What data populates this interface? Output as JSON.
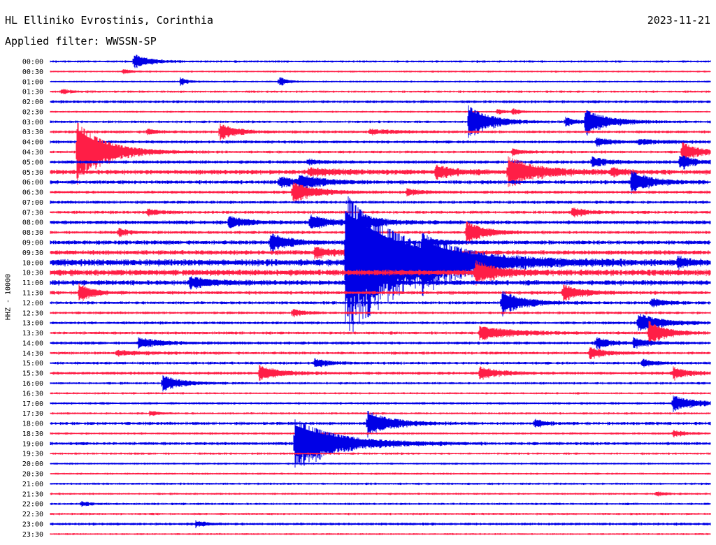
{
  "header": {
    "station": "HL Elliniko Evrostinis, Corinthia",
    "date": "2023-11-21",
    "filter": "Applied filter: WWSSN-SP"
  },
  "channel_label": "HHZ - 10000",
  "chart_data": {
    "type": "line",
    "kind": "helicorder",
    "title": "HL Elliniko Evrostinis, Corinthia",
    "date": "2023-11-21",
    "filter": "WWSSN-SP",
    "ylabel": "HHZ - 10000",
    "x_range_minutes": [
      0,
      30
    ],
    "trace_colors": [
      "#0000e6",
      "#ff1e46"
    ],
    "rows": [
      "00:00",
      "00:30",
      "01:00",
      "01:30",
      "02:00",
      "02:30",
      "03:00",
      "03:30",
      "04:00",
      "04:30",
      "05:00",
      "05:30",
      "06:00",
      "06:30",
      "07:00",
      "07:30",
      "08:00",
      "08:30",
      "09:00",
      "09:30",
      "10:00",
      "10:30",
      "11:00",
      "11:30",
      "12:00",
      "12:30",
      "13:00",
      "13:30",
      "14:00",
      "14:30",
      "15:00",
      "15:30",
      "16:00",
      "16:30",
      "17:00",
      "17:30",
      "18:00",
      "18:30",
      "19:00",
      "19:30",
      "20:00",
      "20:30",
      "21:00",
      "21:30",
      "22:00",
      "22:30",
      "23:00",
      "23:30"
    ],
    "noise": [
      1.2,
      1.0,
      1.0,
      1.2,
      1.5,
      1.0,
      1.3,
      1.5,
      1.6,
      1.4,
      1.8,
      2.5,
      2.0,
      1.6,
      1.6,
      1.6,
      2.0,
      1.6,
      2.2,
      2.4,
      3.5,
      3.2,
      2.6,
      1.8,
      1.6,
      1.4,
      1.5,
      1.5,
      1.6,
      1.5,
      1.5,
      1.6,
      1.3,
      1.1,
      1.3,
      1.2,
      1.6,
      1.2,
      1.6,
      1.2,
      1.1,
      1.1,
      1.2,
      1.1,
      1.2,
      1.2,
      1.5,
      1.0
    ],
    "events": [
      {
        "row": 0,
        "t": 3.8,
        "amp": 10,
        "dur": 0.6
      },
      {
        "row": 1,
        "t": 3.3,
        "amp": 3,
        "dur": 0.4
      },
      {
        "row": 2,
        "t": 5.9,
        "amp": 5,
        "dur": 0.3
      },
      {
        "row": 2,
        "t": 10.4,
        "amp": 7,
        "dur": 0.3
      },
      {
        "row": 3,
        "t": 0.5,
        "amp": 3,
        "dur": 0.4
      },
      {
        "row": 5,
        "t": 20.3,
        "amp": 4,
        "dur": 0.3
      },
      {
        "row": 5,
        "t": 21.0,
        "amp": 4,
        "dur": 0.3
      },
      {
        "row": 6,
        "t": 19.0,
        "amp": 22,
        "dur": 0.9
      },
      {
        "row": 6,
        "t": 23.4,
        "amp": 6,
        "dur": 0.4
      },
      {
        "row": 6,
        "t": 24.3,
        "amp": 16,
        "dur": 1.0
      },
      {
        "row": 7,
        "t": 4.4,
        "amp": 4,
        "dur": 0.4
      },
      {
        "row": 7,
        "t": 7.7,
        "amp": 11,
        "dur": 0.7
      },
      {
        "row": 7,
        "t": 14.5,
        "amp": 3,
        "dur": 1.0
      },
      {
        "row": 8,
        "t": 24.8,
        "amp": 5,
        "dur": 0.6
      },
      {
        "row": 8,
        "t": 26.7,
        "amp": 3,
        "dur": 1.0
      },
      {
        "row": 9,
        "t": 1.2,
        "amp": 42,
        "dur": 1.2
      },
      {
        "row": 9,
        "t": 21.0,
        "amp": 4,
        "dur": 0.5
      },
      {
        "row": 9,
        "t": 28.7,
        "amp": 13,
        "dur": 0.7
      },
      {
        "row": 10,
        "t": 11.7,
        "amp": 3,
        "dur": 0.5
      },
      {
        "row": 10,
        "t": 24.6,
        "amp": 6,
        "dur": 0.6
      },
      {
        "row": 10,
        "t": 28.6,
        "amp": 10,
        "dur": 0.5
      },
      {
        "row": 11,
        "t": 11.7,
        "amp": 4,
        "dur": 1.5
      },
      {
        "row": 11,
        "t": 17.5,
        "amp": 8,
        "dur": 0.8
      },
      {
        "row": 11,
        "t": 20.8,
        "amp": 20,
        "dur": 1.2
      },
      {
        "row": 11,
        "t": 25.5,
        "amp": 5,
        "dur": 0.5
      },
      {
        "row": 12,
        "t": 10.4,
        "amp": 7,
        "dur": 0.7
      },
      {
        "row": 12,
        "t": 11.3,
        "amp": 9,
        "dur": 0.9
      },
      {
        "row": 12,
        "t": 26.4,
        "amp": 15,
        "dur": 0.8
      },
      {
        "row": 13,
        "t": 11.0,
        "amp": 13,
        "dur": 1.0
      },
      {
        "row": 13,
        "t": 16.2,
        "amp": 4,
        "dur": 0.6
      },
      {
        "row": 15,
        "t": 4.4,
        "amp": 4,
        "dur": 0.5
      },
      {
        "row": 15,
        "t": 23.7,
        "amp": 6,
        "dur": 0.6
      },
      {
        "row": 16,
        "t": 8.1,
        "amp": 7,
        "dur": 0.8
      },
      {
        "row": 16,
        "t": 11.8,
        "amp": 10,
        "dur": 0.7
      },
      {
        "row": 16,
        "t": 14.0,
        "amp": 11,
        "dur": 0.9
      },
      {
        "row": 17,
        "t": 3.1,
        "amp": 5,
        "dur": 0.4
      },
      {
        "row": 17,
        "t": 18.9,
        "amp": 14,
        "dur": 0.8
      },
      {
        "row": 18,
        "t": 10.0,
        "amp": 12,
        "dur": 0.8
      },
      {
        "row": 18,
        "t": 16.9,
        "amp": 5,
        "dur": 0.7
      },
      {
        "row": 19,
        "t": 12.0,
        "amp": 6,
        "dur": 0.8
      },
      {
        "row": 20,
        "t": 13.4,
        "amp": 95,
        "dur": 2.6
      },
      {
        "row": 20,
        "t": 16.9,
        "amp": 14,
        "dur": 1.5
      },
      {
        "row": 20,
        "t": 28.5,
        "amp": 7,
        "dur": 0.5
      },
      {
        "row": 21,
        "t": 19.3,
        "amp": 14,
        "dur": 0.9
      },
      {
        "row": 22,
        "t": 6.3,
        "amp": 7,
        "dur": 1.0
      },
      {
        "row": 23,
        "t": 1.3,
        "amp": 12,
        "dur": 0.5
      },
      {
        "row": 23,
        "t": 23.3,
        "amp": 10,
        "dur": 0.8
      },
      {
        "row": 24,
        "t": 20.5,
        "amp": 16,
        "dur": 0.9
      },
      {
        "row": 24,
        "t": 27.3,
        "amp": 6,
        "dur": 0.6
      },
      {
        "row": 25,
        "t": 11.0,
        "amp": 5,
        "dur": 0.5
      },
      {
        "row": 26,
        "t": 26.7,
        "amp": 13,
        "dur": 0.9
      },
      {
        "row": 27,
        "t": 19.5,
        "amp": 8,
        "dur": 1.5
      },
      {
        "row": 27,
        "t": 27.2,
        "amp": 16,
        "dur": 0.7
      },
      {
        "row": 28,
        "t": 4.0,
        "amp": 7,
        "dur": 0.8
      },
      {
        "row": 28,
        "t": 24.8,
        "amp": 7,
        "dur": 0.6
      },
      {
        "row": 28,
        "t": 26.5,
        "amp": 6,
        "dur": 0.6
      },
      {
        "row": 29,
        "t": 3.0,
        "amp": 3,
        "dur": 1.0
      },
      {
        "row": 29,
        "t": 24.5,
        "amp": 7,
        "dur": 0.7
      },
      {
        "row": 30,
        "t": 12.0,
        "amp": 6,
        "dur": 0.5
      },
      {
        "row": 30,
        "t": 26.9,
        "amp": 5,
        "dur": 0.5
      },
      {
        "row": 31,
        "t": 9.5,
        "amp": 10,
        "dur": 0.8
      },
      {
        "row": 31,
        "t": 19.5,
        "amp": 8,
        "dur": 0.8
      },
      {
        "row": 31,
        "t": 28.3,
        "amp": 8,
        "dur": 0.6
      },
      {
        "row": 32,
        "t": 5.1,
        "amp": 10,
        "dur": 0.8
      },
      {
        "row": 34,
        "t": 28.3,
        "amp": 10,
        "dur": 0.9
      },
      {
        "row": 35,
        "t": 4.5,
        "amp": 3,
        "dur": 0.4
      },
      {
        "row": 36,
        "t": 14.4,
        "amp": 17,
        "dur": 1.0
      },
      {
        "row": 36,
        "t": 22.0,
        "amp": 6,
        "dur": 0.4
      },
      {
        "row": 37,
        "t": 28.3,
        "amp": 4,
        "dur": 0.5
      },
      {
        "row": 38,
        "t": 11.1,
        "amp": 34,
        "dur": 1.8
      },
      {
        "row": 43,
        "t": 27.5,
        "amp": 3,
        "dur": 0.4
      },
      {
        "row": 44,
        "t": 1.4,
        "amp": 3,
        "dur": 0.3
      },
      {
        "row": 46,
        "t": 6.6,
        "amp": 4,
        "dur": 0.4
      }
    ]
  }
}
